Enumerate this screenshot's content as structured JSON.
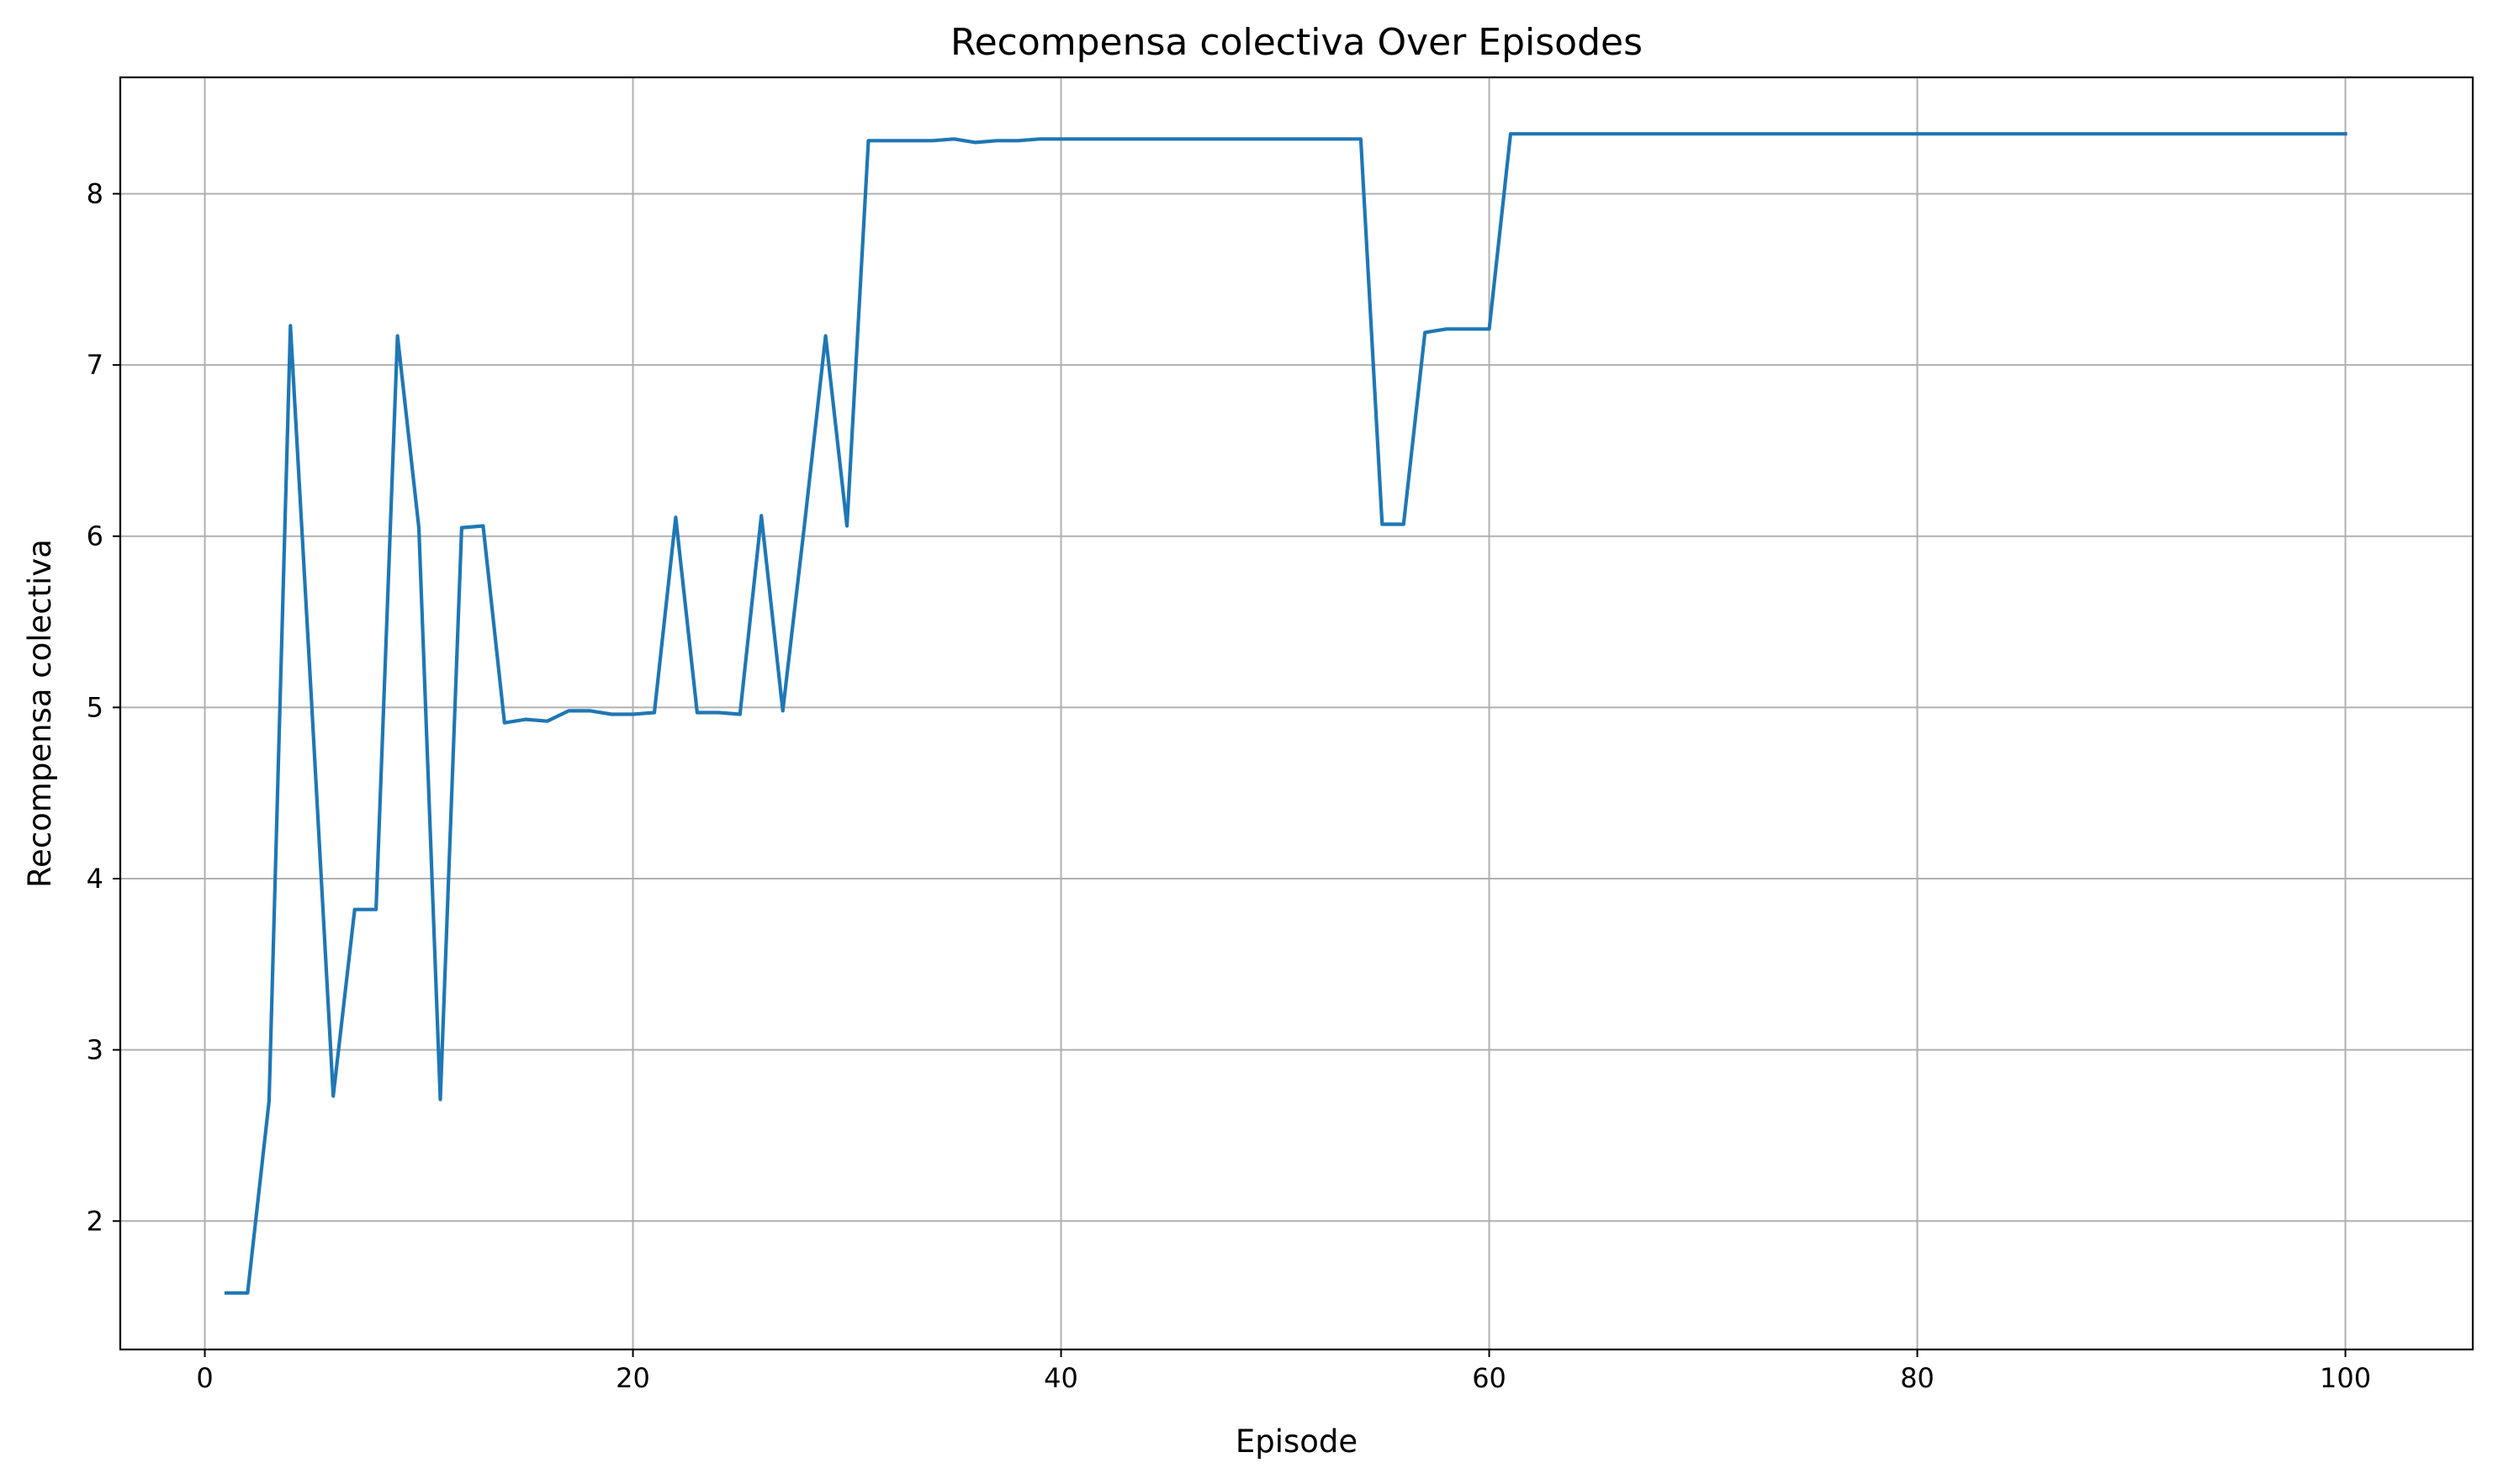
{
  "chart_data": {
    "type": "line",
    "title": "Recompensa colectiva Over Episodes",
    "xlabel": "Episode",
    "ylabel": "Recompensa colectiva",
    "xlim": [
      -3.95,
      105.95
    ],
    "ylim": [
      1.25,
      8.68
    ],
    "xticks": [
      0,
      20,
      40,
      60,
      80,
      100
    ],
    "yticks": [
      2,
      3,
      4,
      5,
      6,
      7,
      8
    ],
    "grid": true,
    "legend": "none",
    "colors": {
      "line": "#1f77b4",
      "grid": "#b0b0b0",
      "axis": "#000000"
    },
    "series": [
      {
        "x": [
          1,
          2,
          3,
          4,
          5,
          6,
          7,
          8,
          9,
          10,
          11,
          12,
          13,
          14,
          15,
          16,
          17,
          18,
          19,
          20,
          21,
          22,
          23,
          24,
          25,
          26,
          27,
          28,
          29,
          30,
          31,
          32,
          33,
          34,
          35,
          36,
          37,
          38,
          39,
          40,
          41,
          42,
          43,
          44,
          45,
          46,
          47,
          48,
          49,
          50,
          51,
          52,
          53,
          54,
          55,
          56,
          57,
          58,
          59,
          60,
          61,
          62,
          63,
          64,
          65,
          66,
          67,
          68,
          69,
          70,
          71,
          72,
          73,
          74,
          75,
          76,
          77,
          78,
          79,
          80,
          81,
          82,
          83,
          84,
          85,
          86,
          87,
          88,
          89,
          90,
          91,
          92,
          93,
          94,
          95,
          96,
          97,
          98,
          99,
          100
        ],
        "values": [
          1.58,
          1.58,
          2.7,
          7.23,
          5.0,
          2.73,
          3.82,
          3.82,
          7.17,
          6.05,
          2.71,
          6.05,
          6.06,
          4.91,
          4.93,
          4.92,
          4.98,
          4.98,
          4.96,
          4.96,
          4.97,
          6.11,
          4.97,
          4.97,
          4.96,
          6.12,
          4.98,
          6.05,
          7.17,
          6.06,
          8.31,
          8.31,
          8.31,
          8.31,
          8.32,
          8.3,
          8.31,
          8.31,
          8.32,
          8.32,
          8.32,
          8.32,
          8.32,
          8.32,
          8.32,
          8.32,
          8.32,
          8.32,
          8.32,
          8.32,
          8.32,
          8.32,
          8.32,
          8.32,
          6.07,
          6.07,
          7.19,
          7.21,
          7.21,
          7.21,
          8.35,
          8.35,
          8.35,
          8.35,
          8.35,
          8.35,
          8.35,
          8.35,
          8.35,
          8.35,
          8.35,
          8.35,
          8.35,
          8.35,
          8.35,
          8.35,
          8.35,
          8.35,
          8.35,
          8.35,
          8.35,
          8.35,
          8.35,
          8.35,
          8.35,
          8.35,
          8.35,
          8.35,
          8.35,
          8.35,
          8.35,
          8.35,
          8.35,
          8.35,
          8.35,
          8.35,
          8.35,
          8.35,
          8.35,
          8.35
        ]
      }
    ]
  }
}
